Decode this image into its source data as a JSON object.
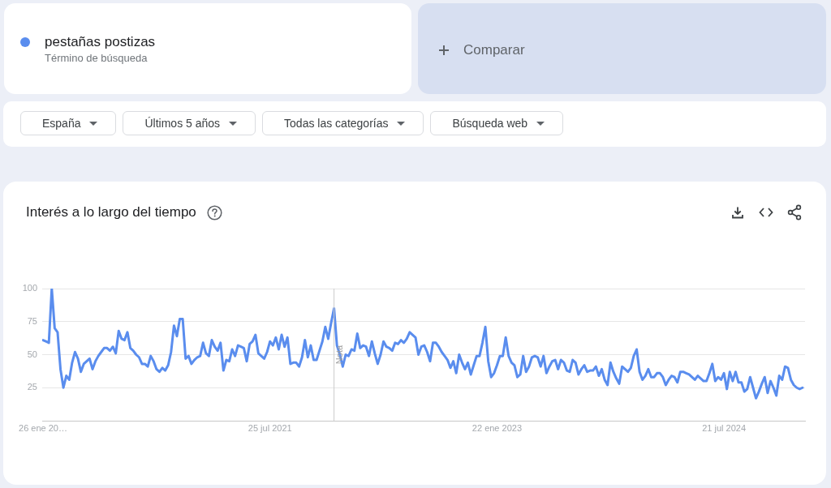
{
  "chart_data": {
    "type": "line",
    "title": "Interés a lo largo del tiempo",
    "annotations": [
      "Término de búsqueda",
      "Comparar",
      "España",
      "Últimos 5 años",
      "Todas las categorías",
      "Búsqueda web"
    ],
    "x": [
      "2020-01-26",
      "2020-02-02",
      "2020-02-09",
      "2020-02-16",
      "2020-02-23",
      "2020-03-01",
      "2020-03-08",
      "2020-03-15",
      "2020-03-22",
      "2020-03-29",
      "2020-04-05",
      "2020-04-12",
      "2020-04-19",
      "2020-04-26",
      "2020-05-03",
      "2020-05-10",
      "2020-05-17",
      "2020-05-24",
      "2020-05-31",
      "2020-06-07",
      "2020-06-14",
      "2020-06-21",
      "2020-06-28",
      "2020-07-05",
      "2020-07-12",
      "2020-07-19",
      "2020-07-26",
      "2020-08-02",
      "2020-08-09",
      "2020-08-16",
      "2020-08-23",
      "2020-08-30",
      "2020-09-06",
      "2020-09-13",
      "2020-09-20",
      "2020-09-27",
      "2020-10-04",
      "2020-10-11",
      "2020-10-18",
      "2020-10-25",
      "2020-11-01",
      "2020-11-08",
      "2020-11-15",
      "2020-11-22",
      "2020-11-29",
      "2020-12-06",
      "2020-12-13",
      "2020-12-20",
      "2020-12-27",
      "2021-01-03",
      "2021-01-10",
      "2021-01-17",
      "2021-01-24",
      "2021-01-31",
      "2021-02-07",
      "2021-02-14",
      "2021-02-21",
      "2021-02-28",
      "2021-03-07",
      "2021-03-14",
      "2021-03-21",
      "2021-03-28",
      "2021-04-04",
      "2021-04-11",
      "2021-04-18",
      "2021-04-25",
      "2021-05-02",
      "2021-05-09",
      "2021-05-16",
      "2021-05-23",
      "2021-05-30",
      "2021-06-06",
      "2021-06-13",
      "2021-06-20",
      "2021-06-27",
      "2021-07-04",
      "2021-07-11",
      "2021-07-18",
      "2021-07-25",
      "2021-08-01",
      "2021-08-08",
      "2021-08-15",
      "2021-08-22",
      "2021-08-29",
      "2021-09-05",
      "2021-09-12",
      "2021-09-19",
      "2021-09-26",
      "2021-10-03",
      "2021-10-10",
      "2021-10-17",
      "2021-10-24",
      "2021-10-31",
      "2021-11-07",
      "2021-11-14",
      "2021-11-21",
      "2021-11-28",
      "2021-12-05",
      "2021-12-12",
      "2021-12-19",
      "2021-12-26",
      "2022-01-02",
      "2022-01-09",
      "2022-01-16",
      "2022-01-23",
      "2022-01-30",
      "2022-02-06",
      "2022-02-13",
      "2022-02-20",
      "2022-02-27",
      "2022-03-06",
      "2022-03-13",
      "2022-03-20",
      "2022-03-27",
      "2022-04-03",
      "2022-04-10",
      "2022-04-17",
      "2022-04-24",
      "2022-05-01",
      "2022-05-08",
      "2022-05-15",
      "2022-05-22",
      "2022-05-29",
      "2022-06-05",
      "2022-06-12",
      "2022-06-19",
      "2022-06-26",
      "2022-07-03",
      "2022-07-10",
      "2022-07-17",
      "2022-07-24",
      "2022-07-31",
      "2022-08-07",
      "2022-08-14",
      "2022-08-21",
      "2022-08-28",
      "2022-09-04",
      "2022-09-11",
      "2022-09-18",
      "2022-09-25",
      "2022-10-02",
      "2022-10-09",
      "2022-10-16",
      "2022-10-23",
      "2022-10-30",
      "2022-11-06",
      "2022-11-13",
      "2022-11-20",
      "2022-11-27",
      "2022-12-04",
      "2022-12-11",
      "2022-12-18",
      "2022-12-25",
      "2023-01-01",
      "2023-01-08",
      "2023-01-15",
      "2023-01-22",
      "2023-01-29",
      "2023-02-05",
      "2023-02-12",
      "2023-02-19",
      "2023-02-26",
      "2023-03-05",
      "2023-03-12",
      "2023-03-19",
      "2023-03-26",
      "2023-04-02",
      "2023-04-09",
      "2023-04-16",
      "2023-04-23",
      "2023-04-30",
      "2023-05-07",
      "2023-05-14",
      "2023-05-21",
      "2023-05-28",
      "2023-06-04",
      "2023-06-11",
      "2023-06-18",
      "2023-06-25",
      "2023-07-02",
      "2023-07-09",
      "2023-07-16",
      "2023-07-23",
      "2023-07-30",
      "2023-08-06",
      "2023-08-13",
      "2023-08-20",
      "2023-08-27",
      "2023-09-03",
      "2023-09-10",
      "2023-09-17",
      "2023-09-24",
      "2023-10-01",
      "2023-10-08",
      "2023-10-15",
      "2023-10-22",
      "2023-10-29",
      "2023-11-05",
      "2023-11-12",
      "2023-11-19",
      "2023-11-26",
      "2023-12-03",
      "2023-12-10",
      "2023-12-17",
      "2023-12-24",
      "2023-12-31",
      "2024-01-07",
      "2024-01-14",
      "2024-01-21",
      "2024-01-28",
      "2024-02-04",
      "2024-02-11",
      "2024-02-18",
      "2024-02-25",
      "2024-03-03",
      "2024-03-10",
      "2024-03-17",
      "2024-03-24",
      "2024-03-31",
      "2024-04-07",
      "2024-04-14",
      "2024-04-21",
      "2024-04-28",
      "2024-05-05",
      "2024-05-12",
      "2024-05-19",
      "2024-05-26",
      "2024-06-02",
      "2024-06-09",
      "2024-06-16",
      "2024-06-23",
      "2024-06-30",
      "2024-07-07",
      "2024-07-14",
      "2024-07-21",
      "2024-07-28",
      "2024-08-04",
      "2024-08-11",
      "2024-08-18",
      "2024-08-25",
      "2024-09-01",
      "2024-09-08",
      "2024-09-15",
      "2024-09-22",
      "2024-09-29",
      "2024-10-06",
      "2024-10-13",
      "2024-10-20",
      "2024-10-27",
      "2024-11-03",
      "2024-11-10",
      "2024-11-17",
      "2024-11-24",
      "2024-12-01",
      "2024-12-08",
      "2024-12-15",
      "2024-12-22",
      "2024-12-29",
      "2025-01-05",
      "2025-01-12",
      "2025-01-19",
      "2025-01-26"
    ],
    "series": [
      {
        "name": "pestañas postizas",
        "color": "#5a8dee",
        "values": [
          61,
          60,
          59,
          100,
          70,
          67,
          39,
          25,
          34,
          31,
          44,
          52,
          47,
          37,
          43,
          45,
          47,
          39,
          45,
          49,
          52,
          55,
          55,
          53,
          56,
          51,
          68,
          62,
          61,
          67,
          55,
          53,
          50,
          48,
          43,
          43,
          41,
          49,
          45,
          39,
          37,
          40,
          38,
          42,
          52,
          72,
          64,
          77,
          77,
          47,
          49,
          43,
          46,
          48,
          49,
          59,
          51,
          49,
          61,
          56,
          53,
          59,
          38,
          46,
          45,
          54,
          49,
          57,
          56,
          55,
          45,
          58,
          60,
          65,
          51,
          49,
          47,
          52,
          60,
          57,
          63,
          54,
          65,
          56,
          63,
          43,
          44,
          44,
          41,
          48,
          61,
          48,
          57,
          46,
          46,
          53,
          60,
          71,
          62,
          74,
          85,
          57,
          50,
          41,
          50,
          49,
          54,
          53,
          66,
          55,
          57,
          56,
          49,
          60,
          51,
          43,
          50,
          60,
          56,
          55,
          53,
          59,
          58,
          61,
          59,
          62,
          67,
          65,
          63,
          50,
          56,
          57,
          52,
          45,
          59,
          59,
          56,
          52,
          49,
          46,
          40,
          45,
          36,
          50,
          44,
          39,
          44,
          35,
          42,
          49,
          49,
          59,
          71,
          45,
          33,
          36,
          42,
          49,
          49,
          63,
          49,
          44,
          42,
          33,
          35,
          49,
          37,
          41,
          48,
          49,
          48,
          41,
          49,
          36,
          41,
          45,
          46,
          39,
          46,
          44,
          38,
          37,
          46,
          44,
          35,
          39,
          42,
          37,
          38,
          38,
          41,
          34,
          39,
          31,
          27,
          44,
          37,
          32,
          28,
          41,
          39,
          37,
          40,
          49,
          54,
          37,
          31,
          34,
          39,
          33,
          33,
          36,
          36,
          33,
          27,
          31,
          34,
          33,
          29,
          37,
          37,
          36,
          35,
          33,
          31,
          34,
          32,
          30,
          30,
          36,
          43,
          30,
          33,
          31,
          36,
          24,
          37,
          30,
          37,
          29,
          29,
          22,
          24,
          33,
          25,
          17,
          22,
          28,
          33,
          21,
          30,
          25,
          19,
          34,
          31,
          41,
          40,
          31,
          27,
          25,
          24,
          25
        ]
      }
    ],
    "xlim": [
      "2020-01-24",
      "2025-02-01"
    ],
    "xticks": [
      {
        "value": "2020-01-26",
        "label": "26 ene 20…"
      },
      {
        "value": "2021-07-25",
        "label": "25 jul 2021"
      },
      {
        "value": "2023-01-22",
        "label": "22 ene 2023"
      },
      {
        "value": "2024-07-21",
        "label": "21 jul 2024"
      }
    ],
    "ylim": [
      0,
      100
    ],
    "yticks": [
      25,
      50,
      75,
      100
    ],
    "grid": "y",
    "legend": "top left",
    "ref_lines": [
      {
        "axis": "x",
        "value": "2021-12-26",
        "label": "Nota",
        "color": "#cccccc"
      }
    ]
  }
}
